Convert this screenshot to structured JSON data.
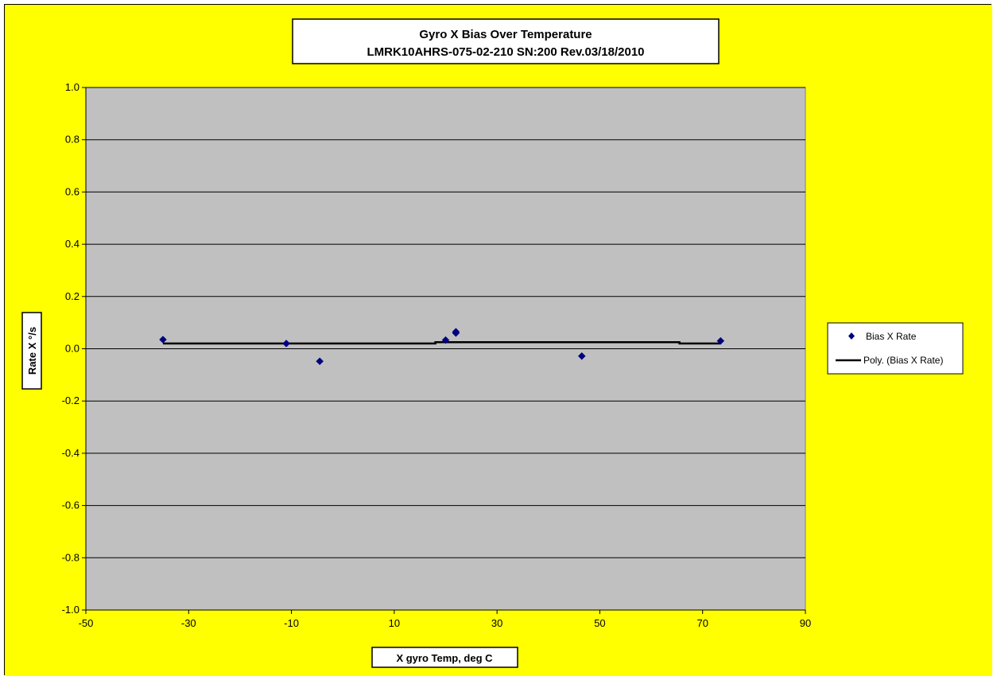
{
  "chart_data": {
    "type": "scatter",
    "title": "Gyro X Bias Over Temperature",
    "subtitle": "LMRK10AHRS-075-02-210 SN:200  Rev.03/18/2010",
    "xlabel": "X gyro Temp, deg C",
    "ylabel": "Rate X °/s",
    "xlim": [
      -50,
      90
    ],
    "ylim": [
      -1.0,
      1.0
    ],
    "x_ticks": [
      "-50",
      "-30",
      "-10",
      "10",
      "30",
      "50",
      "70",
      "90"
    ],
    "y_ticks": [
      "1.0",
      "0.8",
      "0.6",
      "0.4",
      "0.2",
      "0.0",
      "-0.2",
      "-0.4",
      "-0.6",
      "-0.8",
      "-1.0"
    ],
    "grid": true,
    "legend_position": "right",
    "series": [
      {
        "name": "Bias X Rate",
        "marker": "diamond",
        "color": "#000080",
        "points": [
          {
            "x": -35,
            "y": 0.035
          },
          {
            "x": -11,
            "y": 0.02
          },
          {
            "x": -4.5,
            "y": -0.048
          },
          {
            "x": 20,
            "y": 0.033
          },
          {
            "x": 22,
            "y": 0.06
          },
          {
            "x": 22,
            "y": 0.065
          },
          {
            "x": 46.5,
            "y": -0.028
          },
          {
            "x": 73.5,
            "y": 0.03
          }
        ]
      },
      {
        "name": "Poly. (Bias X Rate)",
        "color": "#000000",
        "points": [
          {
            "x": -35,
            "y": 0.02
          },
          {
            "x": 18,
            "y": 0.02
          },
          {
            "x": 18,
            "y": 0.025
          },
          {
            "x": 65.5,
            "y": 0.025
          },
          {
            "x": 65.5,
            "y": 0.02
          },
          {
            "x": 73.5,
            "y": 0.02
          }
        ]
      }
    ],
    "colors": {
      "chart_background": "#ffff00",
      "plot_background": "#c0c0c0",
      "gridline": "#000000"
    }
  }
}
